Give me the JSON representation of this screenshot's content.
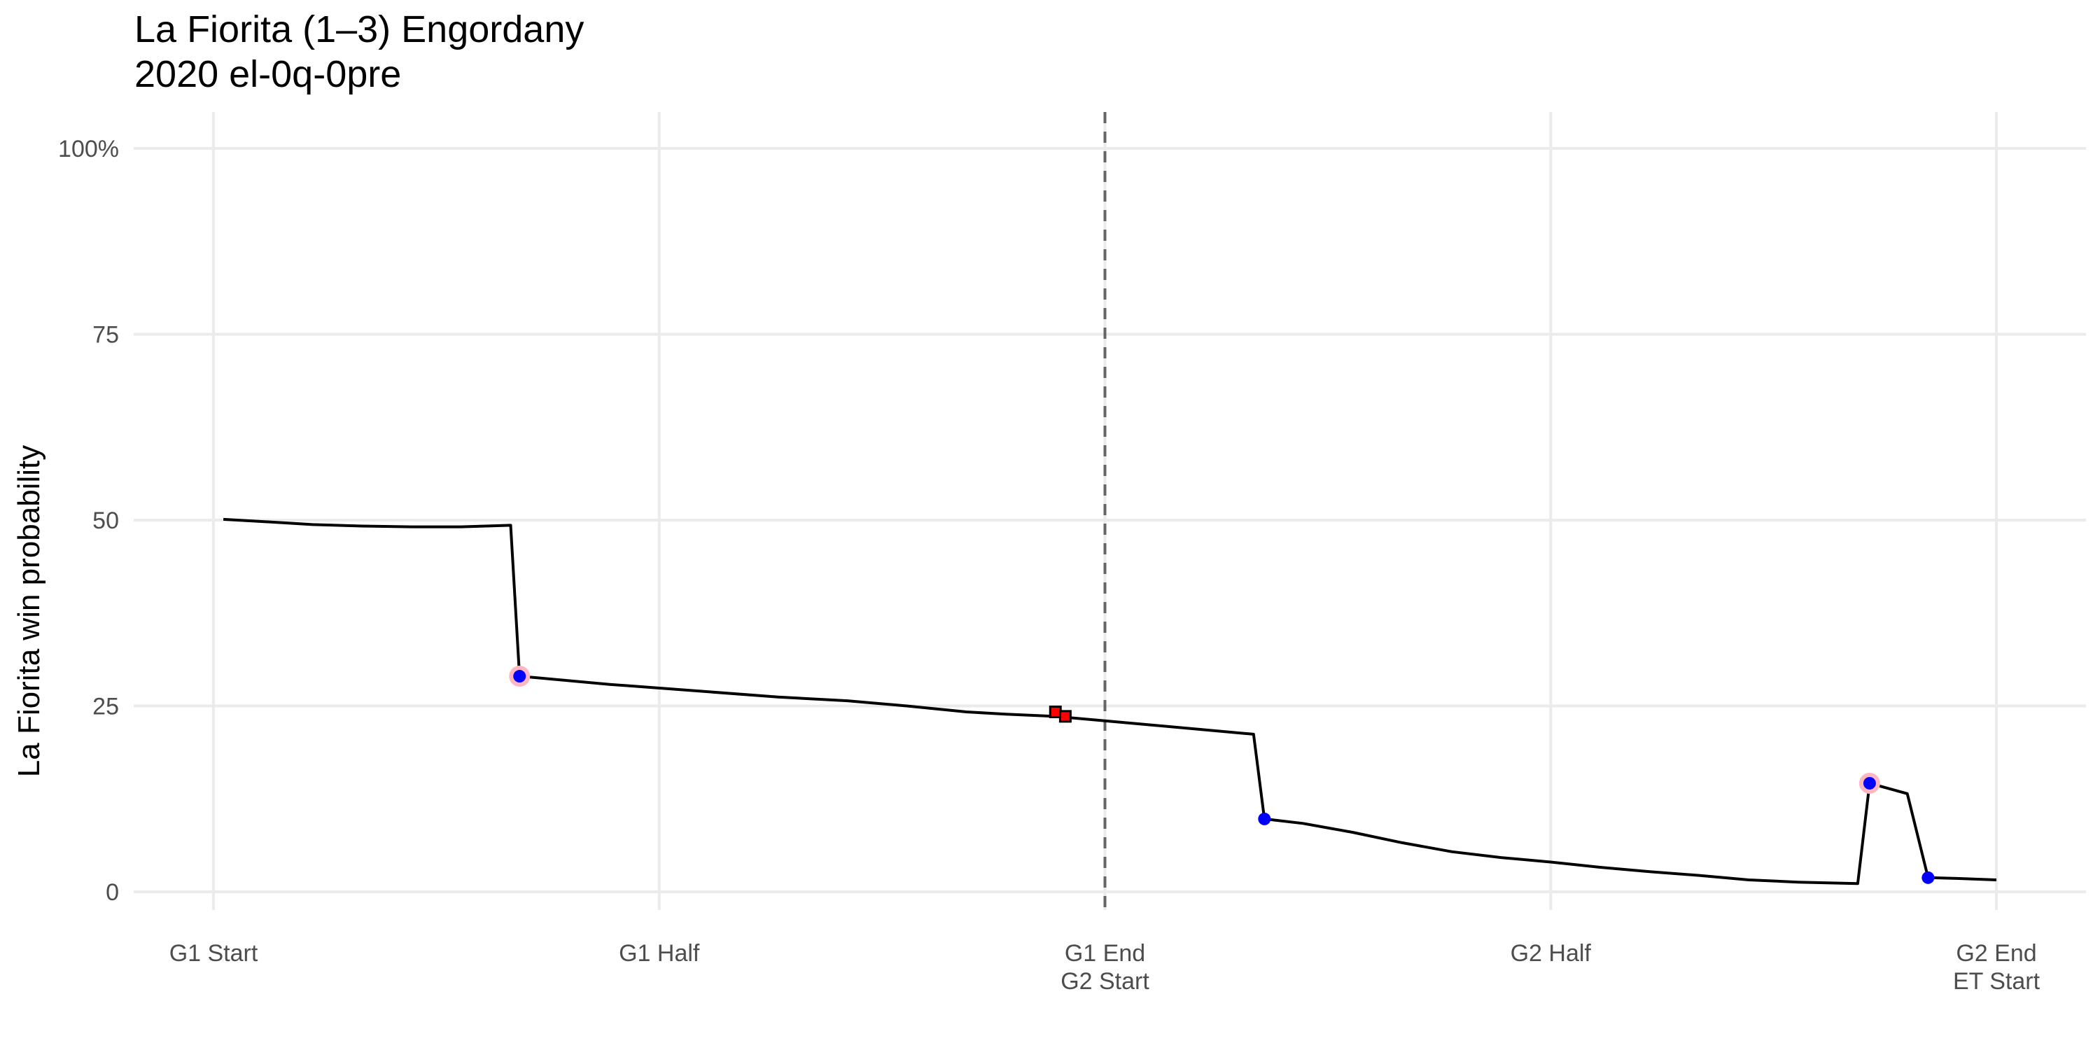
{
  "title": "La Fiorita (1–3) Engordany",
  "subtitle": "2020 el-0q-0pre",
  "chart_data": {
    "type": "line",
    "ylabel": "La Fiorita win probability",
    "ylim": [
      0,
      100
    ],
    "y_ticks": [
      {
        "v": 100,
        "label": "100%"
      },
      {
        "v": 75,
        "label": "75"
      },
      {
        "v": 50,
        "label": "50"
      },
      {
        "v": 25,
        "label": "25"
      },
      {
        "v": 0,
        "label": "0"
      }
    ],
    "xlim": [
      0,
      180
    ],
    "x_ticks": [
      {
        "v": 0,
        "lines": [
          "G1 Start"
        ]
      },
      {
        "v": 45,
        "lines": [
          "G1 Half"
        ]
      },
      {
        "v": 90,
        "lines": [
          "G1 End",
          "G2 Start"
        ]
      },
      {
        "v": 135,
        "lines": [
          "G2 Half"
        ]
      },
      {
        "v": 180,
        "lines": [
          "G2 End",
          "ET Start"
        ]
      }
    ],
    "vline_x": 90,
    "grid": true,
    "series": [
      {
        "values": [
          [
            1,
            50.1
          ],
          [
            5,
            49.8
          ],
          [
            10,
            49.4
          ],
          [
            15,
            49.2
          ],
          [
            20,
            49.1
          ],
          [
            25,
            49.1
          ],
          [
            30,
            49.3
          ],
          [
            30.9,
            29.0
          ],
          [
            40,
            27.9
          ],
          [
            50,
            26.9
          ],
          [
            57,
            26.2
          ],
          [
            64,
            25.7
          ],
          [
            70,
            25.0
          ],
          [
            76,
            24.2
          ],
          [
            80,
            23.9
          ],
          [
            85,
            23.6
          ],
          [
            90,
            23.0
          ],
          [
            95,
            22.4
          ],
          [
            100,
            21.8
          ],
          [
            105,
            21.2
          ],
          [
            106.1,
            9.8
          ],
          [
            110,
            9.2
          ],
          [
            115,
            8.0
          ],
          [
            120,
            6.6
          ],
          [
            125,
            5.4
          ],
          [
            130,
            4.6
          ],
          [
            135,
            4.0
          ],
          [
            140,
            3.3
          ],
          [
            145,
            2.7
          ],
          [
            150,
            2.2
          ],
          [
            155,
            1.6
          ],
          [
            160,
            1.3
          ],
          [
            166,
            1.1
          ],
          [
            167.2,
            14.6
          ],
          [
            171,
            13.2
          ],
          [
            173.1,
            1.9
          ],
          [
            176,
            1.8
          ],
          [
            180,
            1.6
          ]
        ]
      }
    ],
    "goal_markers": [
      {
        "x": 30.9,
        "y": 29.0,
        "highlight": true
      },
      {
        "x": 106.1,
        "y": 9.8,
        "highlight": false
      },
      {
        "x": 167.2,
        "y": 14.6,
        "highlight": true
      },
      {
        "x": 173.1,
        "y": 1.9,
        "highlight": false
      }
    ],
    "card_markers": [
      {
        "x": 85.0,
        "y": 24.2
      },
      {
        "x": 86.0,
        "y": 23.6
      }
    ],
    "colors": {
      "line": "#000000",
      "goal_point": "#0000ff",
      "goal_halo": "#ffb6c1",
      "card_fill": "#ff0000",
      "card_stroke": "#000000",
      "grid": "#ebebeb",
      "vline": "#666666",
      "tick_text": "#4d4d4d"
    }
  }
}
